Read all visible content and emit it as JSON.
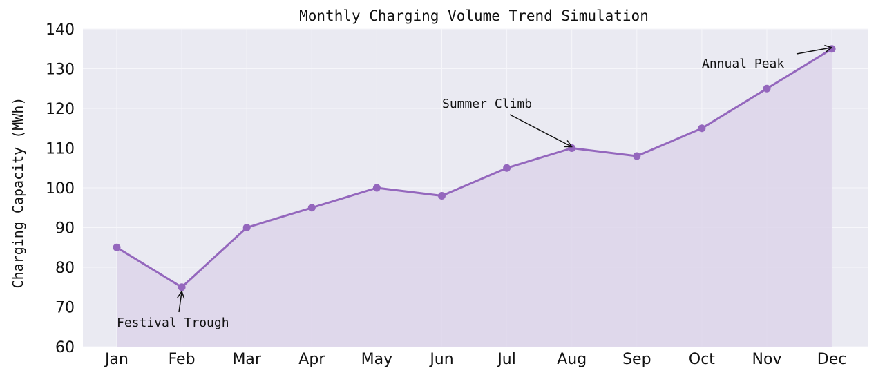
{
  "chart_data": {
    "type": "line",
    "title": "Monthly Charging Volume Trend Simulation",
    "xlabel": "",
    "ylabel": "Charging Capacity (MWh)",
    "categories": [
      "Jan",
      "Feb",
      "Mar",
      "Apr",
      "May",
      "Jun",
      "Jul",
      "Aug",
      "Sep",
      "Oct",
      "Nov",
      "Dec"
    ],
    "values": [
      85,
      75,
      90,
      95,
      100,
      98,
      105,
      110,
      108,
      115,
      125,
      135
    ],
    "ylim": [
      60,
      140
    ],
    "yticks": [
      60,
      70,
      80,
      90,
      100,
      110,
      120,
      130,
      140
    ],
    "grid": true,
    "filled_area": true,
    "colors": {
      "line": "#9467bd",
      "fill": "#ddd5ea",
      "background": "#eaeaf2",
      "grid": "#f6f6fa"
    },
    "annotations": [
      {
        "text": "Festival Trough",
        "category": "Feb",
        "value": 75
      },
      {
        "text": "Summer Climb",
        "category": "Aug",
        "value": 110
      },
      {
        "text": "Annual Peak",
        "category": "Dec",
        "value": 135
      }
    ]
  }
}
